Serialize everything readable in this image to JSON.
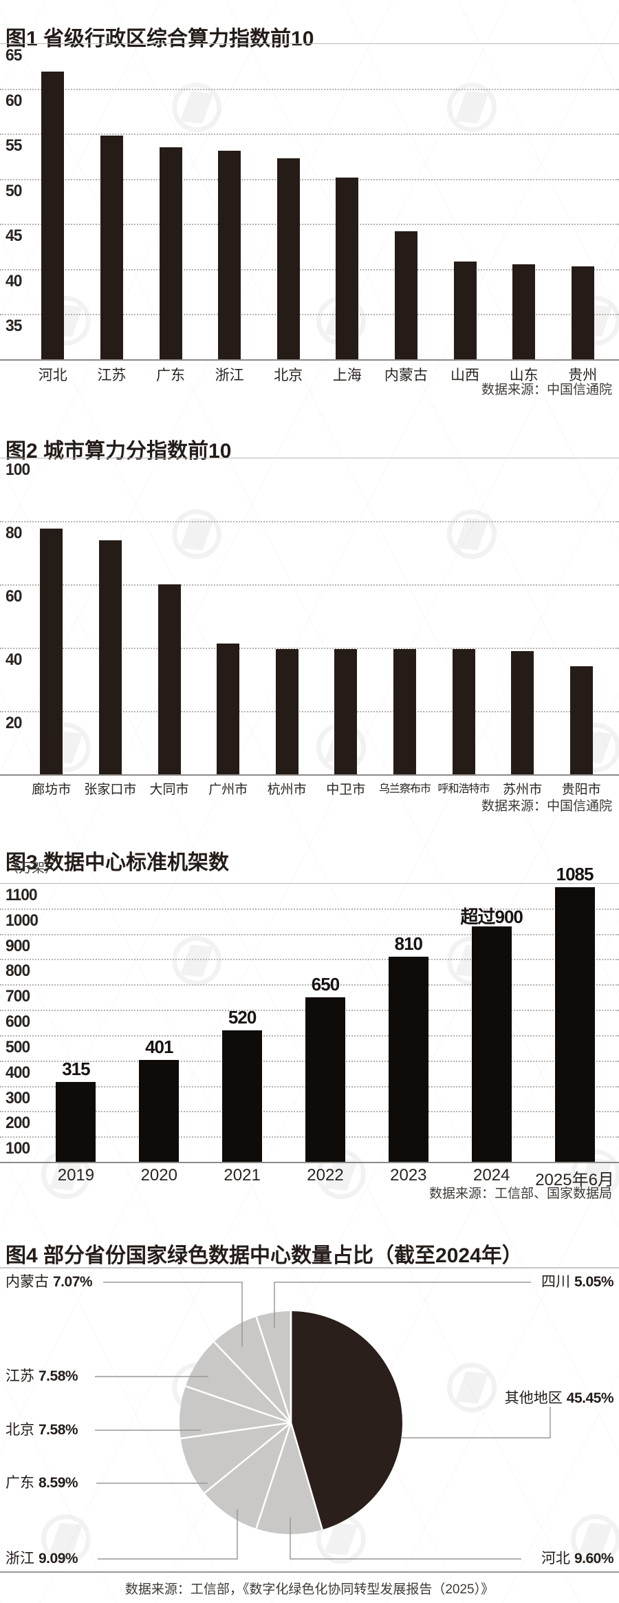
{
  "chart_data": [
    {
      "type": "bar",
      "title": "图1 省级行政区综合算力指数前10",
      "source": "数据来源：中国信通院",
      "categories": [
        "河北",
        "江苏",
        "广东",
        "浙江",
        "北京",
        "上海",
        "内蒙古",
        "山西",
        "山东",
        "贵州"
      ],
      "values": [
        61.9,
        54.8,
        53.5,
        53.1,
        52.3,
        50.1,
        44.2,
        40.8,
        40.5,
        40.3
      ],
      "yticks": [
        "65",
        "60",
        "55",
        "50",
        "45",
        "40",
        "35"
      ],
      "ylim": [
        30,
        65
      ],
      "grid": "horizontal-dotted",
      "legend": "none",
      "bar_color": "#251b17"
    },
    {
      "type": "bar",
      "title": "图2 城市算力分指数前10",
      "source": "数据来源：中国信通院",
      "categories": [
        "廊坊市",
        "张家口市",
        "大同市",
        "广州市",
        "杭州市",
        "中卫市",
        "乌兰察布市",
        "呼和浩特市",
        "苏州市",
        "贵阳市"
      ],
      "values": [
        77.6,
        73.9,
        60.0,
        41.3,
        39.6,
        39.5,
        39.5,
        39.5,
        38.9,
        34.1
      ],
      "yticks": [
        "100",
        "80",
        "60",
        "40",
        "20"
      ],
      "ylim": [
        0,
        100
      ],
      "grid": "horizontal-dotted",
      "legend": "none",
      "bar_color": "#251b17"
    },
    {
      "type": "bar",
      "title": "图3 数据中心标准机架数",
      "unit": "（万架）",
      "source": "数据来源：工信部、国家数据局",
      "categories": [
        "2019",
        "2020",
        "2021",
        "2022",
        "2023",
        "2024",
        "2025年6月"
      ],
      "values": [
        315,
        401,
        520,
        650,
        810,
        930,
        1085
      ],
      "bar_labels": [
        "315",
        "401",
        "520",
        "650",
        "810",
        "超过900",
        "1085"
      ],
      "yticks": [
        "1100",
        "1000",
        "900",
        "800",
        "700",
        "600",
        "500",
        "400",
        "300",
        "200",
        "100"
      ],
      "ylim": [
        0,
        1100
      ],
      "grid": "horizontal-dotted",
      "legend": "none",
      "bar_color": "#0f0b09"
    },
    {
      "type": "pie",
      "title": "图4 部分省份国家绿色数据中心数量占比（截至2024年）",
      "source": "数据来源：工信部，《数字化绿色化协同转型发展报告（2025）》",
      "start_angle": "top",
      "direction": "clockwise",
      "colors": {
        "dark": "#2a1f1a",
        "light": "#c9c8c6",
        "separator": "#ffffff"
      },
      "slices": [
        {
          "name": "其他地区",
          "pct": 45.45,
          "label": "45.45%",
          "tone": "dark"
        },
        {
          "name": "河北",
          "pct": 9.6,
          "label": "9.60%",
          "tone": "light"
        },
        {
          "name": "浙江",
          "pct": 9.09,
          "label": "9.09%",
          "tone": "light"
        },
        {
          "name": "广东",
          "pct": 8.59,
          "label": "8.59%",
          "tone": "light"
        },
        {
          "name": "北京",
          "pct": 7.58,
          "label": "7.58%",
          "tone": "light"
        },
        {
          "name": "江苏",
          "pct": 7.58,
          "label": "7.58%",
          "tone": "light"
        },
        {
          "name": "内蒙古",
          "pct": 7.07,
          "label": "7.07%",
          "tone": "light"
        },
        {
          "name": "四川",
          "pct": 5.05,
          "label": "5.05%",
          "tone": "light"
        }
      ]
    }
  ]
}
